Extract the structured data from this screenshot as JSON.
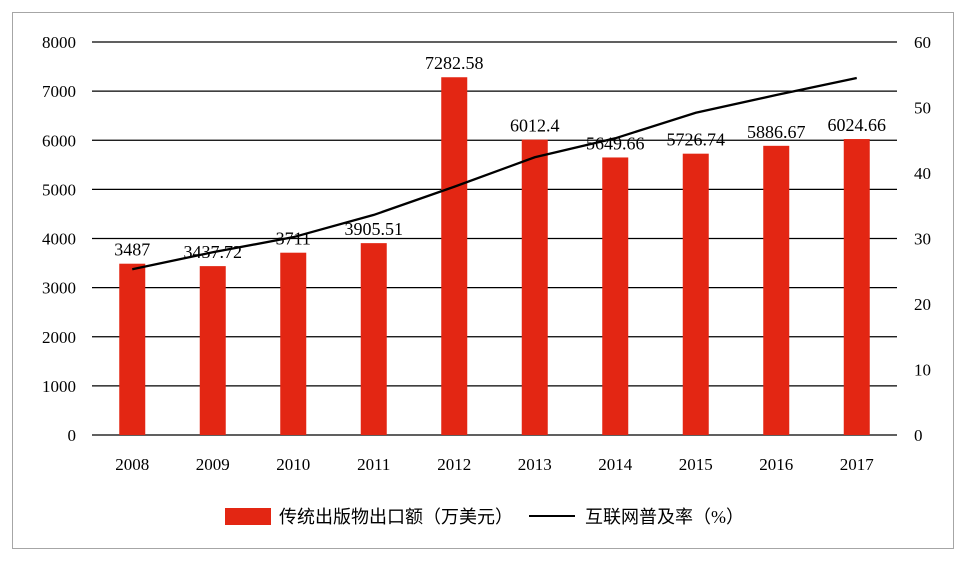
{
  "chart_data": {
    "type": "bar+line",
    "categories": [
      "2008",
      "2009",
      "2010",
      "2011",
      "2012",
      "2013",
      "2014",
      "2015",
      "2016",
      "2017"
    ],
    "series": [
      {
        "name": "传统出版物出口额（万美元）",
        "type": "bar",
        "axis": "left",
        "color": "#e32613",
        "values": [
          3487,
          3437.72,
          3711,
          3905.51,
          7282.58,
          6012.4,
          5649.66,
          5726.74,
          5886.67,
          6024.66
        ],
        "labels": [
          "3487",
          "3437.72",
          "3711",
          "3905.51",
          "7282.58",
          "6012.4",
          "5649.66",
          "5726.74",
          "5886.67",
          "6024.66"
        ]
      },
      {
        "name": "互联网普及率（%）",
        "type": "line",
        "axis": "right",
        "color": "#000000",
        "values": [
          25.3,
          27.9,
          30.2,
          33.6,
          37.9,
          42.4,
          45.3,
          49.2,
          51.9,
          54.5
        ]
      }
    ],
    "y_left": {
      "ylim": [
        0,
        8000
      ],
      "ticks": [
        "0",
        "1000",
        "2000",
        "3000",
        "4000",
        "5000",
        "6000",
        "7000",
        "8000"
      ]
    },
    "y_right": {
      "ylim": [
        0,
        60
      ],
      "ticks": [
        "0",
        "10",
        "20",
        "30",
        "40",
        "50",
        "60"
      ]
    },
    "grid": true,
    "legend": "bottom"
  }
}
